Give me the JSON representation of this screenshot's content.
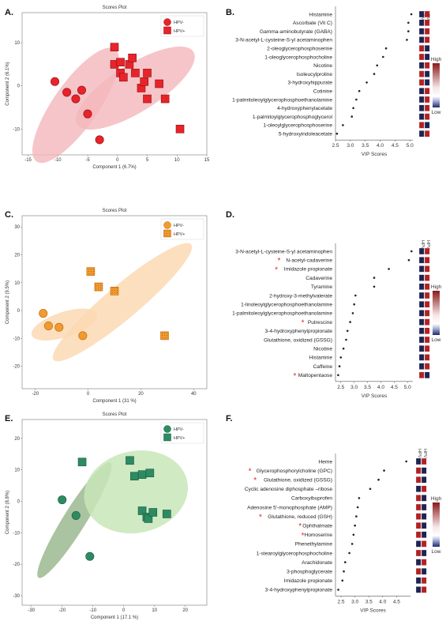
{
  "panels": {
    "A": "A.",
    "B": "B.",
    "C": "C.",
    "D": "D.",
    "E": "E.",
    "F": "F."
  },
  "colors": {
    "hpv_neg_red": "#e8232a",
    "hpv_pos_red": "#e8232a",
    "ellipse_red": "#f4b6bb",
    "orange": "#f29a2e",
    "ellipse_orange": "#fbd9b3",
    "green": "#2e8a63",
    "ellipse_green_dark": "#9bb98f",
    "ellipse_green_light": "#c8e6b8",
    "heat_high": "#b22222",
    "heat_low": "#1f2a6b",
    "heat_dark": "#1d2450"
  },
  "heat_legend": {
    "high": "High",
    "low": "Low"
  },
  "col_labels": {
    "neg": "HPV-",
    "pos": "HPV+"
  },
  "chart_data": [
    {
      "id": "A",
      "type": "scatter",
      "title": "Scores Plot",
      "xlabel": "Component 1 (6.7%)",
      "ylabel": "Component 2 (6.1%)",
      "xlim": [
        -16,
        15
      ],
      "ylim": [
        -16,
        17
      ],
      "xticks": [
        -15,
        -10,
        -5,
        0,
        5,
        10,
        15
      ],
      "yticks": [
        -10,
        0,
        10
      ],
      "legend": [
        "HPV-",
        "HPV+"
      ],
      "legend_position": "top-right",
      "series": [
        {
          "name": "HPV-",
          "marker": "circle",
          "points": [
            [
              -10.5,
              1
            ],
            [
              -8.5,
              -1.5
            ],
            [
              -7,
              -3
            ],
            [
              -6,
              -1
            ],
            [
              -5,
              -6.5
            ],
            [
              -3,
              -12.5
            ]
          ]
        },
        {
          "name": "HPV+",
          "marker": "square",
          "points": [
            [
              -0.5,
              9
            ],
            [
              -0.5,
              5
            ],
            [
              0.5,
              5.5
            ],
            [
              0.5,
              3
            ],
            [
              1,
              2
            ],
            [
              2,
              5
            ],
            [
              2.5,
              6.5
            ],
            [
              3,
              3
            ],
            [
              4,
              -0.5
            ],
            [
              4.5,
              1
            ],
            [
              5,
              3
            ],
            [
              5,
              -3
            ],
            [
              7,
              0.5
            ],
            [
              8,
              -3
            ],
            [
              10.5,
              -10
            ]
          ]
        }
      ]
    },
    {
      "id": "B",
      "type": "scatter",
      "xlabel": "VIP Scores",
      "xlim": [
        2.5,
        5.1
      ],
      "xticks": [
        2.5,
        3.0,
        3.5,
        4.0,
        4.5,
        5.0
      ],
      "metabolites": [
        {
          "name": "Histamine",
          "vip": 5.05,
          "marked": false,
          "heat": [
            "neg",
            "pos"
          ]
        },
        {
          "name": "Ascorbate (Vit C)",
          "vip": 4.95,
          "marked": false,
          "heat": [
            "neg",
            "pos"
          ]
        },
        {
          "name": "Gamma-aminobutyrate (GABA)",
          "vip": 4.95,
          "marked": false,
          "heat": [
            "neg",
            "pos"
          ]
        },
        {
          "name": "3-N-acetyl-L-cysteine-S-yl acetaminophen",
          "vip": 4.9,
          "marked": false,
          "heat": [
            "neg",
            "pos"
          ]
        },
        {
          "name": "2-oleoglycerophosphoserine",
          "vip": 4.2,
          "marked": false,
          "heat": [
            "pos",
            "neg"
          ]
        },
        {
          "name": "1-oleoglycerophosphocholine",
          "vip": 4.1,
          "marked": false,
          "heat": [
            "pos",
            "neg"
          ]
        },
        {
          "name": "Nicotine",
          "vip": 3.9,
          "marked": false,
          "heat": [
            "neg",
            "pos"
          ]
        },
        {
          "name": "Isoleucylproline",
          "vip": 3.8,
          "marked": false,
          "heat": [
            "pos",
            "neg"
          ]
        },
        {
          "name": "3-hydroxyhippurate",
          "vip": 3.55,
          "marked": false,
          "heat": [
            "pos",
            "neg"
          ]
        },
        {
          "name": "Cotinine",
          "vip": 3.3,
          "marked": false,
          "heat": [
            "neg",
            "pos"
          ]
        },
        {
          "name": "1-palmitoleoylglycerophosphoethanolamine",
          "vip": 3.2,
          "marked": false,
          "heat": [
            "neg",
            "pos"
          ]
        },
        {
          "name": "4-hydroxyphenylacetate",
          "vip": 3.1,
          "marked": false,
          "heat": [
            "neg",
            "pos"
          ]
        },
        {
          "name": "1-palmitoylglycerophosphoglycerol",
          "vip": 3.05,
          "marked": false,
          "heat": [
            "neg",
            "pos"
          ]
        },
        {
          "name": "1-oleoylglycerophosphoserine",
          "vip": 2.75,
          "marked": false,
          "heat": [
            "pos",
            "neg"
          ]
        },
        {
          "name": "5-hydroxyindoleacetate",
          "vip": 2.55,
          "marked": false,
          "heat": [
            "neg",
            "pos"
          ]
        }
      ]
    },
    {
      "id": "C",
      "type": "scatter",
      "title": "Scores Plot",
      "xlabel": "Component 1 (31 %)",
      "ylabel": "Component 2 (9.5%)",
      "xlim": [
        -25,
        45
      ],
      "ylim": [
        -28,
        34
      ],
      "xticks": [
        -20,
        0,
        20,
        40
      ],
      "yticks": [
        -20,
        -10,
        0,
        10,
        20,
        30
      ],
      "legend": [
        "HPV-",
        "HPV+"
      ],
      "legend_position": "top-right",
      "series": [
        {
          "name": "HPV-",
          "marker": "circle",
          "points": [
            [
              -17,
              -1
            ],
            [
              -15,
              -5.5
            ],
            [
              -11,
              -6
            ],
            [
              -2,
              -9
            ]
          ]
        },
        {
          "name": "HPV+",
          "marker": "square",
          "points": [
            [
              1,
              14
            ],
            [
              4,
              8.5
            ],
            [
              10,
              7
            ],
            [
              29,
              -9
            ]
          ]
        }
      ]
    },
    {
      "id": "D",
      "type": "scatter",
      "xlabel": "VIP Scores",
      "xlim": [
        2.3,
        5.2
      ],
      "xticks": [
        2.5,
        3.0,
        3.5,
        4.0,
        4.5,
        5.0
      ],
      "metabolites": [
        {
          "name": "3-N-acetyl-L-cysteine-S-yl acetaminophen",
          "vip": 5.15,
          "marked": false,
          "heat": [
            "neg",
            "pos"
          ]
        },
        {
          "name": "N-acetyl-cadaverine",
          "vip": 5.05,
          "marked": true,
          "heat": [
            "neg",
            "pos"
          ]
        },
        {
          "name": "Imidazole propionate",
          "vip": 4.3,
          "marked": true,
          "heat": [
            "neg",
            "pos"
          ]
        },
        {
          "name": "Cadaverine",
          "vip": 3.75,
          "marked": false,
          "heat": [
            "neg",
            "pos"
          ]
        },
        {
          "name": "Tyramine",
          "vip": 3.75,
          "marked": false,
          "heat": [
            "neg",
            "pos"
          ]
        },
        {
          "name": "2-hydroxy-3-methylvalerate",
          "vip": 3.05,
          "marked": false,
          "heat": [
            "neg",
            "pos"
          ]
        },
        {
          "name": "1-linoleoylglycerophosphoethanolamine",
          "vip": 3.0,
          "marked": false,
          "heat": [
            "neg",
            "pos"
          ]
        },
        {
          "name": "1-palmitoleoylglycerophosphoethanolamine",
          "vip": 2.95,
          "marked": false,
          "heat": [
            "neg",
            "pos"
          ]
        },
        {
          "name": "Putrescine",
          "vip": 2.85,
          "marked": true,
          "heat": [
            "neg",
            "pos"
          ]
        },
        {
          "name": "3-4-hydroxyphenylpropionate",
          "vip": 2.75,
          "marked": false,
          "heat": [
            "neg",
            "pos"
          ]
        },
        {
          "name": "Glutathione, oxidized (GSSG)",
          "vip": 2.7,
          "marked": false,
          "heat": [
            "neg",
            "pos"
          ]
        },
        {
          "name": "Nicotine",
          "vip": 2.6,
          "marked": false,
          "heat": [
            "neg",
            "pos"
          ]
        },
        {
          "name": "Histamine",
          "vip": 2.5,
          "marked": false,
          "heat": [
            "neg",
            "pos"
          ]
        },
        {
          "name": "Caffeine",
          "vip": 2.45,
          "marked": false,
          "heat": [
            "neg",
            "pos"
          ]
        },
        {
          "name": "Maltopentaose",
          "vip": 2.4,
          "marked": true,
          "heat": [
            "pos",
            "neg"
          ]
        }
      ]
    },
    {
      "id": "E",
      "type": "scatter",
      "title": "Scores Plot",
      "xlabel": "Component 1 (17.1 %)",
      "ylabel": "Component 2 (8.8%)",
      "xlim": [
        -33,
        27
      ],
      "ylim": [
        -33,
        26
      ],
      "xticks": [
        -30,
        -20,
        -10,
        0,
        10,
        20
      ],
      "yticks": [
        -30,
        -20,
        -10,
        0,
        10,
        20
      ],
      "legend": [
        "HPV-",
        "HPV+"
      ],
      "legend_position": "top-right",
      "series": [
        {
          "name": "HPV-",
          "marker": "circle",
          "points": [
            [
              -20,
              0.5
            ],
            [
              -15.5,
              -4.5
            ],
            [
              -11,
              -17.5
            ]
          ]
        },
        {
          "name": "HPV+",
          "marker": "square",
          "points": [
            [
              -13.5,
              12.5
            ],
            [
              2,
              13
            ],
            [
              3.5,
              8
            ],
            [
              6,
              8.5
            ],
            [
              8.5,
              9
            ],
            [
              6,
              -3
            ],
            [
              7.5,
              -5
            ],
            [
              8,
              -5.5
            ],
            [
              9.5,
              -3.5
            ],
            [
              14,
              -4
            ]
          ]
        }
      ]
    },
    {
      "id": "F",
      "type": "scatter",
      "xlabel": "VIP Scores",
      "xlim": [
        2.3,
        5.0
      ],
      "xticks": [
        2.5,
        3.0,
        3.5,
        4.0,
        4.5
      ],
      "metabolites": [
        {
          "name": "Heme",
          "vip": 4.85,
          "marked": false,
          "heat": [
            "neg",
            "pos"
          ]
        },
        {
          "name": "Glycerophosphorylcholine (GPC)",
          "vip": 4.05,
          "marked": true,
          "heat": [
            "pos",
            "neg"
          ]
        },
        {
          "name": "Glutathione, oxidized (GSSG)",
          "vip": 3.85,
          "marked": true,
          "heat": [
            "pos",
            "neg"
          ]
        },
        {
          "name": "Cyclic adenosine diphosphate –ribose",
          "vip": 3.55,
          "marked": false,
          "heat": [
            "neg",
            "pos"
          ]
        },
        {
          "name": "Carboxyibuprofen",
          "vip": 3.15,
          "marked": false,
          "heat": [
            "pos",
            "neg"
          ]
        },
        {
          "name": "Adenosine 5'-monophosphate (AMP)",
          "vip": 3.1,
          "marked": false,
          "heat": [
            "pos",
            "neg"
          ]
        },
        {
          "name": "Glutathione, reduced (GSH)",
          "vip": 3.05,
          "marked": true,
          "heat": [
            "pos",
            "neg"
          ]
        },
        {
          "name": "Ophthalmate",
          "vip": 3.0,
          "marked": true,
          "heat": [
            "pos",
            "neg"
          ]
        },
        {
          "name": "Homoserine",
          "vip": 2.95,
          "marked": true,
          "heat": [
            "pos",
            "neg"
          ]
        },
        {
          "name": "Phenethylamine",
          "vip": 2.9,
          "marked": false,
          "heat": [
            "neg",
            "pos"
          ]
        },
        {
          "name": "1-stearoylglycerophosphocholine",
          "vip": 2.8,
          "marked": false,
          "heat": [
            "pos",
            "neg"
          ]
        },
        {
          "name": "Arachidonate",
          "vip": 2.65,
          "marked": false,
          "heat": [
            "neg",
            "pos"
          ]
        },
        {
          "name": "3-phosphoglycerate",
          "vip": 2.6,
          "marked": false,
          "heat": [
            "pos",
            "neg"
          ]
        },
        {
          "name": "Imidazole propionate",
          "vip": 2.55,
          "marked": false,
          "heat": [
            "neg",
            "pos"
          ]
        },
        {
          "name": "3-4-hydroxyphenylpropionate",
          "vip": 2.4,
          "marked": false,
          "heat": [
            "neg",
            "pos"
          ]
        }
      ]
    }
  ]
}
